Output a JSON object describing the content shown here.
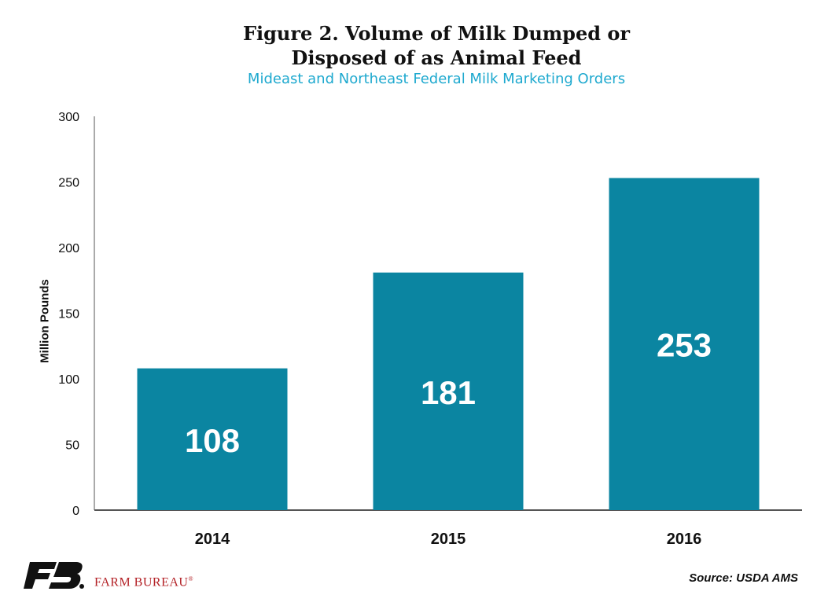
{
  "chart_data": {
    "type": "bar",
    "title_line1": "Figure 2. Volume of Milk Dumped or",
    "title_line2": "Disposed of as Animal Feed",
    "subtitle": "Mideast and Northeast Federal Milk Marketing Orders",
    "ylabel": "Million Pounds",
    "xlabel": "",
    "categories": [
      "2014",
      "2015",
      "2016"
    ],
    "values": [
      108,
      181,
      253
    ],
    "data_labels": [
      "108",
      "181",
      "253"
    ],
    "ylim": [
      0,
      300
    ],
    "yticks": [
      0,
      50,
      100,
      150,
      200,
      250,
      300
    ],
    "grid": false,
    "legend": "none",
    "bar_color": "#0b85a1",
    "label_color": "#ffffff"
  },
  "source": "Source: USDA AMS",
  "brand": {
    "name": "FARM BUREAU",
    "mark": "®",
    "logo_icon": "fb-logo-icon",
    "logo_color": "#111111",
    "text_color": "#b32025"
  }
}
